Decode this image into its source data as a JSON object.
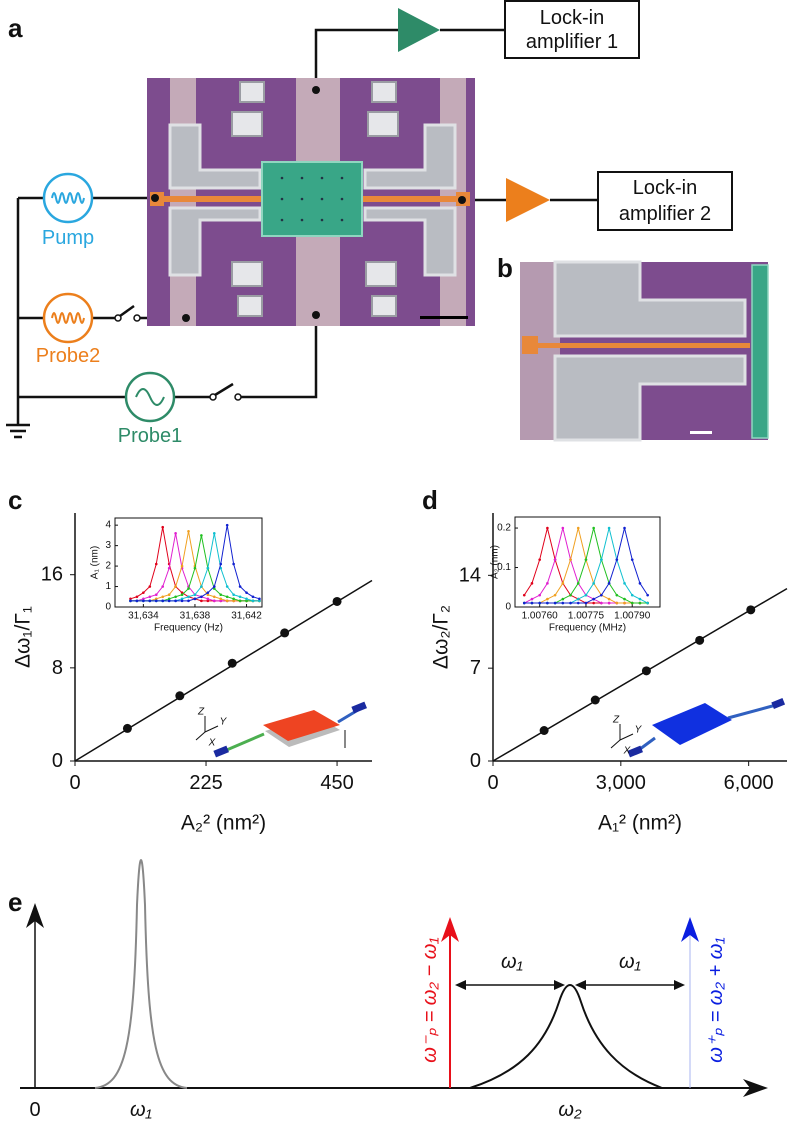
{
  "panel_labels": [
    "a",
    "b",
    "c",
    "d",
    "e"
  ],
  "circuit": {
    "amplifiers": [
      [
        "Lock-in",
        "amplifier 1"
      ],
      [
        "Lock-in",
        "amplifier 2"
      ]
    ],
    "sources": [
      "Pump",
      "Probe2",
      "Probe1"
    ]
  },
  "chart_data": [
    {
      "type": "scatter",
      "ylabel": "Δω₁/Γ₁",
      "xlabel": "A₂² (nm²)",
      "color": "#111111",
      "x": [
        90,
        180,
        270,
        360,
        450
      ],
      "values": [
        2.8,
        5.6,
        8.4,
        11.0,
        13.7
      ],
      "fit": {
        "x": [
          0,
          510
        ],
        "values": [
          0,
          15.5
        ]
      },
      "xlim": [
        0,
        510
      ],
      "ylim": [
        0,
        21.3
      ],
      "xticks": [
        0,
        225,
        450
      ],
      "yticks": [
        0,
        8,
        16
      ],
      "annotations": [
        "Z",
        "Y",
        "X"
      ]
    },
    {
      "type": "line",
      "ylabel": "A₁ (nm)",
      "xlabel": "Frequency (Hz)",
      "x": [
        31633,
        31633.5,
        31634,
        31634.5,
        31635,
        31635.5,
        31636,
        31636.5,
        31637,
        31637.5,
        31638,
        31638.5,
        31639,
        31639.5,
        31640,
        31640.5,
        31641,
        31641.5,
        31642,
        31642.5,
        31643
      ],
      "series": [
        {
          "color": "#e0001a",
          "values": [
            0.4,
            0.5,
            0.7,
            1.0,
            2.1,
            3.9,
            2.1,
            1.0,
            0.7,
            0.5,
            0.4,
            0.3,
            0.3,
            0.3,
            0.3,
            0.3,
            0.3,
            0.3,
            0.3,
            0.3,
            0.3
          ]
        },
        {
          "color": "#e020d0",
          "values": [
            0.3,
            0.3,
            0.4,
            0.5,
            0.6,
            1.0,
            1.9,
            3.6,
            1.9,
            1.0,
            0.6,
            0.5,
            0.4,
            0.3,
            0.3,
            0.3,
            0.3,
            0.3,
            0.3,
            0.3,
            0.3
          ]
        },
        {
          "color": "#f0a020",
          "values": [
            0.3,
            0.3,
            0.3,
            0.3,
            0.4,
            0.5,
            0.6,
            1.0,
            2.0,
            3.7,
            2.0,
            1.0,
            0.6,
            0.5,
            0.4,
            0.3,
            0.3,
            0.3,
            0.3,
            0.3,
            0.3
          ]
        },
        {
          "color": "#20c020",
          "values": [
            0.3,
            0.3,
            0.3,
            0.3,
            0.3,
            0.3,
            0.4,
            0.5,
            0.6,
            0.9,
            1.9,
            3.5,
            1.9,
            0.9,
            0.6,
            0.5,
            0.4,
            0.3,
            0.3,
            0.3,
            0.3
          ]
        },
        {
          "color": "#10c0d0",
          "values": [
            0.3,
            0.3,
            0.3,
            0.3,
            0.3,
            0.3,
            0.3,
            0.3,
            0.4,
            0.5,
            0.6,
            1.0,
            1.9,
            3.6,
            1.9,
            1.0,
            0.6,
            0.5,
            0.4,
            0.3,
            0.3
          ]
        },
        {
          "color": "#1020d0",
          "values": [
            0.3,
            0.3,
            0.3,
            0.3,
            0.3,
            0.3,
            0.3,
            0.3,
            0.3,
            0.3,
            0.4,
            0.5,
            0.7,
            1.0,
            2.1,
            4.0,
            2.1,
            1.0,
            0.7,
            0.5,
            0.4
          ]
        }
      ],
      "xlim": [
        31631.8,
        31643.2
      ],
      "ylim": [
        0,
        4.35
      ],
      "xticks": [
        {
          "value": 31634,
          "label": "31,634"
        },
        {
          "value": 31638,
          "label": "31,638"
        },
        {
          "value": 31642,
          "label": "31,642"
        }
      ],
      "yticks": [
        0,
        1,
        2,
        3,
        4
      ]
    },
    {
      "type": "scatter",
      "ylabel": "Δω₂/Γ₂",
      "xlabel": "A₁² (nm²)",
      "color": "#111111",
      "x": [
        1200,
        2400,
        3600,
        4850,
        6050
      ],
      "values": [
        2.3,
        4.6,
        6.8,
        9.1,
        11.4
      ],
      "fit": {
        "x": [
          0,
          6900
        ],
        "values": [
          0,
          13.0
        ]
      },
      "xlim": [
        0,
        6900
      ],
      "ylim": [
        0,
        18.7
      ],
      "xticks": [
        0,
        {
          "value": 3000,
          "label": "3,000"
        },
        {
          "value": 6000,
          "label": "6,000"
        }
      ],
      "yticks": [
        0,
        7,
        14
      ],
      "annotations": [
        "Z",
        "Y",
        "X"
      ]
    },
    {
      "type": "line",
      "ylabel": "A₂ (nm)",
      "xlabel": "Frequency (MHz)",
      "x": [
        1.00755,
        1.007575,
        1.0076,
        1.007625,
        1.00765,
        1.007675,
        1.0077,
        1.007725,
        1.00775,
        1.007775,
        1.0078,
        1.007825,
        1.00785,
        1.007875,
        1.0079,
        1.007925,
        1.00795
      ],
      "series": [
        {
          "color": "#e0001a",
          "values": [
            0.03,
            0.06,
            0.12,
            0.2,
            0.12,
            0.06,
            0.03,
            0.02,
            0.01,
            0.01,
            0.01,
            0.01,
            0.01,
            0.01,
            0.01,
            0.01,
            0.01
          ]
        },
        {
          "color": "#e020d0",
          "values": [
            0.01,
            0.02,
            0.03,
            0.06,
            0.12,
            0.2,
            0.12,
            0.06,
            0.03,
            0.02,
            0.01,
            0.01,
            0.01,
            0.01,
            0.01,
            0.01,
            0.01
          ]
        },
        {
          "color": "#f0a020",
          "values": [
            0.01,
            0.01,
            0.01,
            0.02,
            0.03,
            0.06,
            0.12,
            0.2,
            0.12,
            0.06,
            0.03,
            0.02,
            0.01,
            0.01,
            0.01,
            0.01,
            0.01
          ]
        },
        {
          "color": "#20c020",
          "values": [
            0.01,
            0.01,
            0.01,
            0.01,
            0.01,
            0.02,
            0.03,
            0.06,
            0.12,
            0.2,
            0.12,
            0.06,
            0.03,
            0.02,
            0.01,
            0.01,
            0.01
          ]
        },
        {
          "color": "#10c0d0",
          "values": [
            0.01,
            0.01,
            0.01,
            0.01,
            0.01,
            0.01,
            0.01,
            0.02,
            0.03,
            0.06,
            0.12,
            0.2,
            0.12,
            0.06,
            0.03,
            0.02,
            0.01
          ]
        },
        {
          "color": "#1020d0",
          "values": [
            0.01,
            0.01,
            0.01,
            0.01,
            0.01,
            0.01,
            0.01,
            0.01,
            0.01,
            0.02,
            0.03,
            0.06,
            0.12,
            0.2,
            0.12,
            0.06,
            0.03
          ]
        }
      ],
      "xlim": [
        1.00752,
        1.00799
      ],
      "ylim": [
        0,
        0.228
      ],
      "xticks": [
        {
          "value": 1.0076,
          "label": "1.00760"
        },
        {
          "value": 1.00775,
          "label": "1.00775"
        },
        {
          "value": 1.0079,
          "label": "1.00790"
        }
      ],
      "yticks": [
        0,
        0.1,
        0.2
      ]
    }
  ],
  "spectrum": {
    "origin": "0",
    "peaks": [
      "ω₁",
      "ω₂"
    ],
    "spacings": [
      "ω₁",
      "ω₁"
    ],
    "probes": [
      "ω⁻ₚ = ω₂ − ω₁",
      "ω⁺ₚ = ω₂ + ω₁"
    ]
  }
}
